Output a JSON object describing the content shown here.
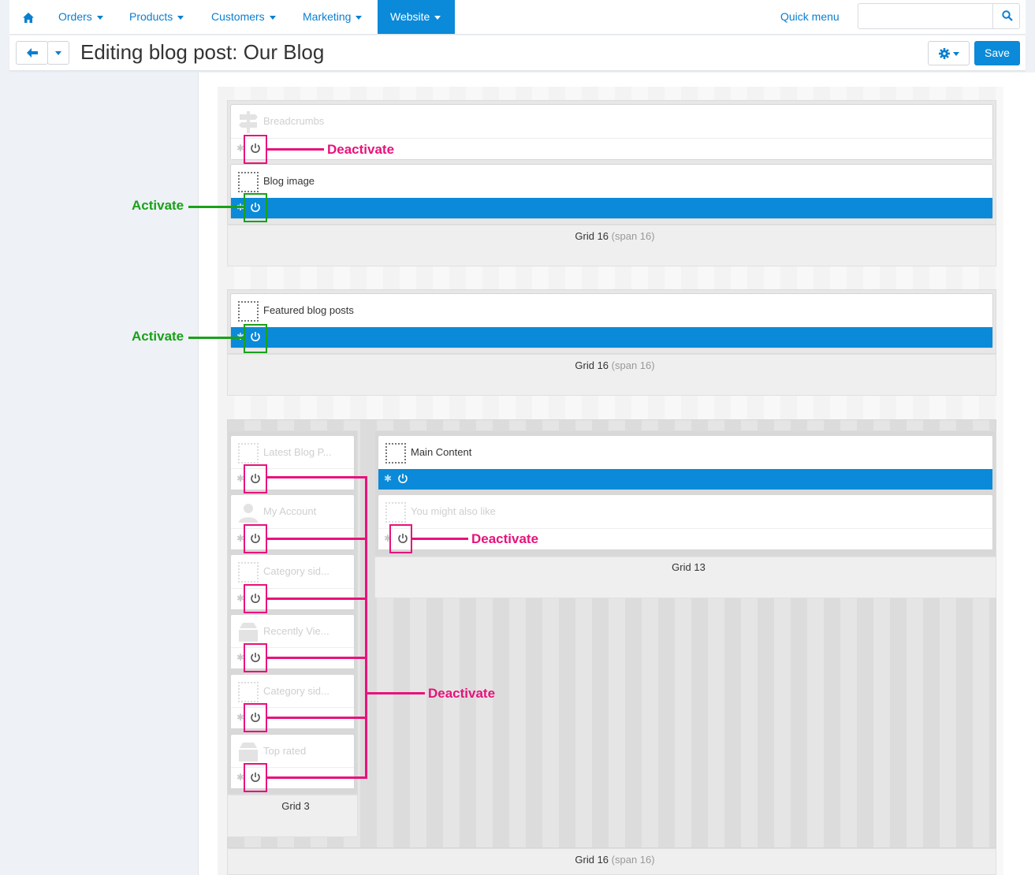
{
  "nav": {
    "home_icon": "home-icon",
    "items": [
      {
        "label": "Orders"
      },
      {
        "label": "Products"
      },
      {
        "label": "Customers"
      },
      {
        "label": "Marketing"
      },
      {
        "label": "Website",
        "active": true
      }
    ],
    "quick_menu": "Quick menu",
    "search_placeholder": ""
  },
  "toolbar": {
    "title": "Editing blog post: Our Blog",
    "save_label": "Save"
  },
  "colors": {
    "brand": "#0a8ad8",
    "deactivate": "#e8127b",
    "activate": "#1aa11a"
  },
  "layout": {
    "grid1": {
      "label": "Grid 16",
      "span": "(span 16)",
      "blocks": [
        {
          "name": "Breadcrumbs",
          "active": false
        },
        {
          "name": "Blog image",
          "active": true
        }
      ]
    },
    "grid2": {
      "label": "Grid 16",
      "span": "(span 16)",
      "blocks": [
        {
          "name": "Featured blog posts",
          "active": true
        }
      ]
    },
    "grid3": {
      "label": "Grid 16",
      "span": "(span 16)",
      "left": {
        "label": "Grid 3",
        "blocks": [
          {
            "name": "Latest Blog P...",
            "active": false
          },
          {
            "name": "My Account",
            "active": false
          },
          {
            "name": "Category sid...",
            "active": false
          },
          {
            "name": "Recently Vie...",
            "active": false
          },
          {
            "name": "Category sid...",
            "active": false
          },
          {
            "name": "Top rated",
            "active": false
          }
        ]
      },
      "right": {
        "label": "Grid 13",
        "blocks": [
          {
            "name": "Main Content",
            "active": true
          },
          {
            "name": "You might also like",
            "active": false
          }
        ]
      }
    }
  },
  "annotations": {
    "deactivate": "Deactivate",
    "activate": "Activate"
  }
}
